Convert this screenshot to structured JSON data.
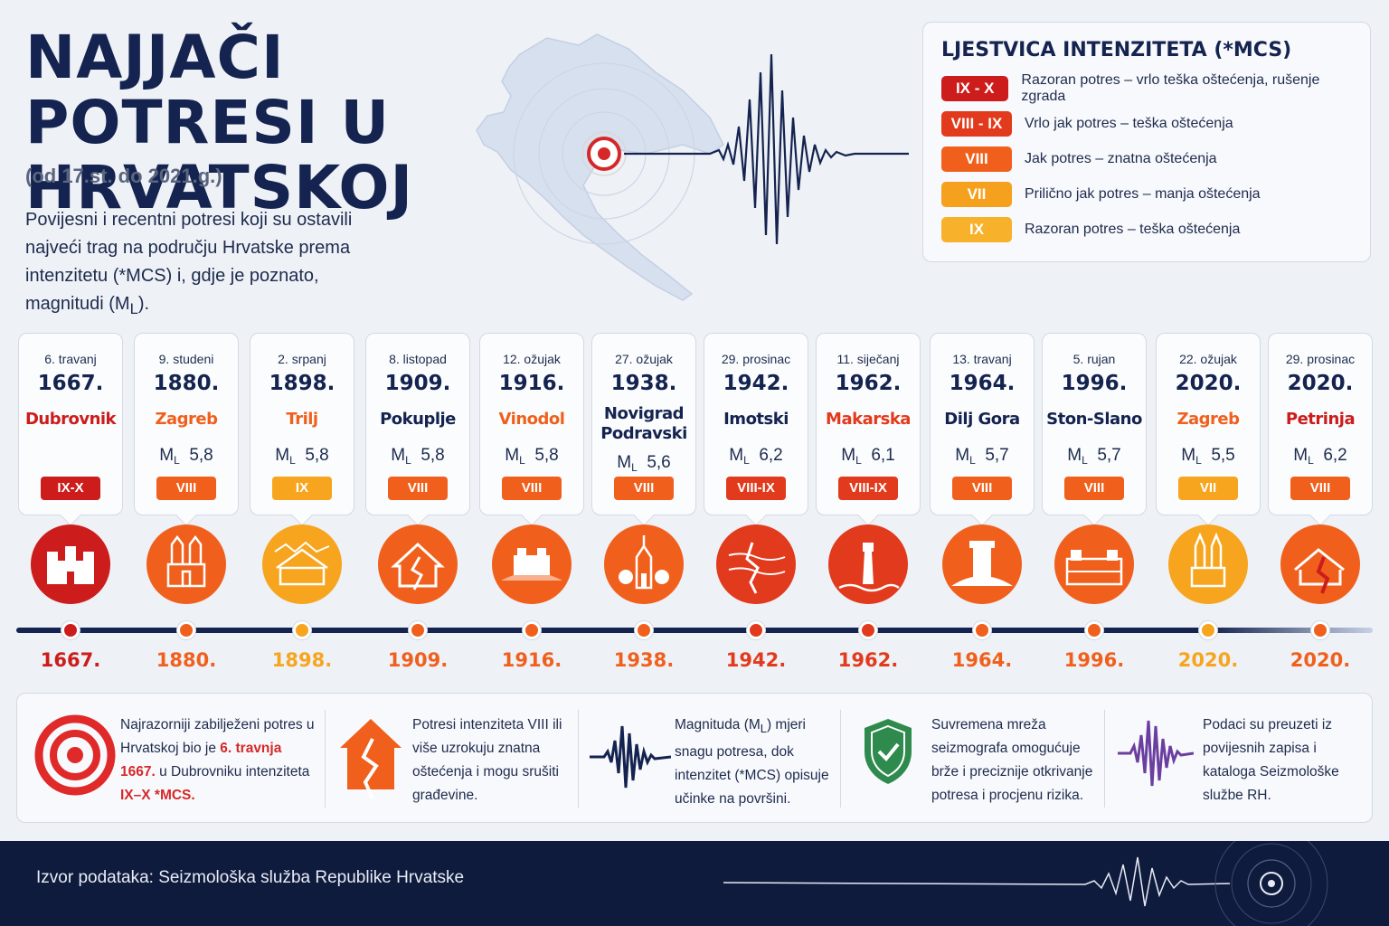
{
  "title": "NAJJAČI POTRESI U HRVATSKOJ",
  "subtitle": "(od 17.st. do 2021.g.)",
  "intro": {
    "text": "Povijesni i recentni potresi koji su ostavili najveći trag na području Hrvatske prema intenzitetu (*MCS) i, gdje je poznato, magnitudi (M",
    "sub": "L",
    "end": ")."
  },
  "legend": {
    "title": "LJESTVICA INTENZITETA (*MCS)",
    "rows": [
      {
        "badge": "IX - X",
        "text": "Razoran potres – vrlo teška oštećenja, rušenje zgrada",
        "color": "#cc1c1c"
      },
      {
        "badge": "VIII - IX",
        "text": "Vrlo jak potres – teška oštećenja",
        "color": "#e23a1c"
      },
      {
        "badge": "VIII",
        "text": "Jak potres – znatna oštećenja",
        "color": "#f0601c"
      },
      {
        "badge": "VII",
        "text": "Prilično jak potres – manja oštećenja",
        "color": "#f5a11e"
      },
      {
        "badge": "IX",
        "text": "Razoran potres – teška oštećenja",
        "color": "#f7b12a"
      }
    ]
  },
  "events": [
    {
      "date": "6. travanj",
      "year": "1667.",
      "location": "Dubrovnik",
      "ml": "",
      "mag": "",
      "intensity": "IX-X",
      "color": "#cc1c1c",
      "loc_color": "#cc1c1c",
      "icon": "city-walls-icon"
    },
    {
      "date": "9. studeni",
      "year": "1880.",
      "location": "Zagreb",
      "ml": "M",
      "mag": "5,8",
      "intensity": "VIII",
      "color": "#f0601c",
      "loc_color": "#f0601c",
      "icon": "cathedral-icon"
    },
    {
      "date": "2. srpanj",
      "year": "1898.",
      "location": "Trilj",
      "ml": "M",
      "mag": "5,8",
      "intensity": "IX",
      "color": "#f7a51e",
      "loc_color": "#f0601c",
      "icon": "town-building-icon"
    },
    {
      "date": "8. listopad",
      "year": "1909.",
      "location": "Pokuplje",
      "ml": "M",
      "mag": "5,8",
      "intensity": "VIII",
      "color": "#f0601c",
      "loc_color": "#14234f",
      "icon": "cracked-house-icon"
    },
    {
      "date": "12. ožujak",
      "year": "1916.",
      "location": "Vinodol",
      "ml": "M",
      "mag": "5,8",
      "intensity": "VIII",
      "color": "#f0601c",
      "loc_color": "#f0601c",
      "icon": "fortress-hill-icon"
    },
    {
      "date": "27. ožujak",
      "year": "1938.",
      "location": "Novigrad Podravski",
      "ml": "M",
      "mag": "5,6",
      "intensity": "VIII",
      "color": "#f0601c",
      "loc_color": "#14234f",
      "icon": "church-icon"
    },
    {
      "date": "29. prosinac",
      "year": "1942.",
      "location": "Imotski",
      "ml": "M",
      "mag": "6,2",
      "intensity": "VIII-IX",
      "color": "#e23a1c",
      "loc_color": "#14234f",
      "icon": "ground-crack-icon"
    },
    {
      "date": "11. siječanj",
      "year": "1962.",
      "location": "Makarska",
      "ml": "M",
      "mag": "6,1",
      "intensity": "VIII-IX",
      "color": "#e23a1c",
      "loc_color": "#e23a1c",
      "icon": "lighthouse-icon"
    },
    {
      "date": "13. travanj",
      "year": "1964.",
      "location": "Dilj Gora",
      "ml": "M",
      "mag": "5,7",
      "intensity": "VIII",
      "color": "#f0601c",
      "loc_color": "#14234f",
      "icon": "tower-hill-icon"
    },
    {
      "date": "5. rujan",
      "year": "1996.",
      "location": "Ston-Slano",
      "ml": "M",
      "mag": "5,7",
      "intensity": "VIII",
      "color": "#f0601c",
      "loc_color": "#14234f",
      "icon": "stone-walls-icon"
    },
    {
      "date": "22. ožujak",
      "year": "2020.",
      "location": "Zagreb",
      "ml": "M",
      "mag": "5,5",
      "intensity": "VII",
      "color": "#f7a51e",
      "loc_color": "#f0601c",
      "icon": "cathedral-towers-icon"
    },
    {
      "date": "29. prosinac",
      "year": "2020.",
      "location": "Petrinja",
      "ml": "M",
      "mag": "6,2",
      "intensity": "VIII",
      "color": "#f0601c",
      "loc_color": "#cc1c1c",
      "icon": "collapsed-house-icon"
    }
  ],
  "timeline_labels": [
    "1667.",
    "1880.",
    "1898.",
    "1909.",
    "1916.",
    "1938.",
    "1942.",
    "1962.",
    "1964.",
    "1996.",
    "2020.",
    "2020."
  ],
  "facts": [
    {
      "icon": "target-icon",
      "t1": "Najrazorniji zabilježeni potres u Hrvatskoj bio je ",
      "hl1": "6. travnja 1667.",
      "t2": " u Dubrovniku intenziteta ",
      "hl2": "IX–X *MCS."
    },
    {
      "icon": "cracked-house-icon",
      "t1": "Potresi intenziteta VIII ili više uzrokuju znatna oštećenja i mogu srušiti građevine."
    },
    {
      "icon": "seismograph-icon",
      "t1": "Magnituda (M",
      "sub": "L",
      "t2": ") mjeri snagu potresa, dok intenzitet (*MCS) opisuje učinke na površini."
    },
    {
      "icon": "shield-check-icon",
      "t1": "Suvremena mreža seizmografa omogućuje brže i preciznije otkrivanje potresa i procjenu rizika."
    },
    {
      "icon": "waveform-icon",
      "t1": "Podaci su preuzeti iz povijesnih zapisa i kataloga Seizmološke službe RH."
    }
  ],
  "footer": "Izvor podataka: Seizmološka služba Republike Hrvatske"
}
